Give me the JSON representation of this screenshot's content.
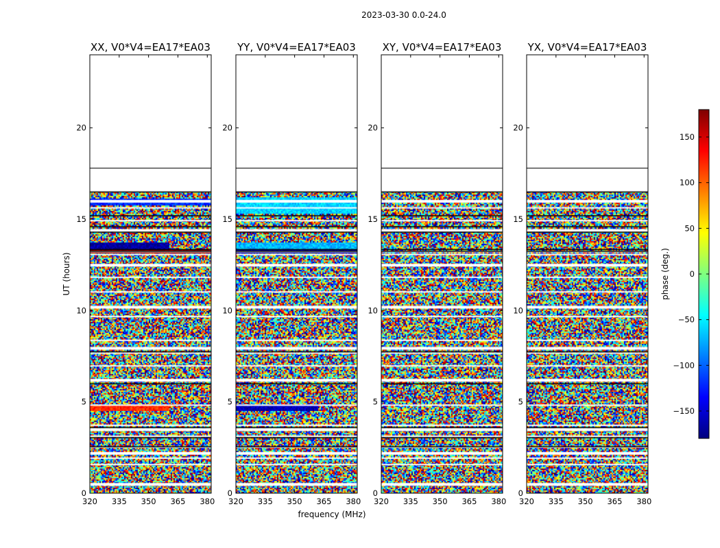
{
  "chart_data": {
    "type": "heatmap",
    "suptitle": "2023-03-30 0.0-24.0",
    "xlabel": "frequency (MHz)",
    "ylabel": "UT (hours)",
    "xlim": [
      320,
      382
    ],
    "ylim": [
      0,
      24
    ],
    "xticks": [
      320,
      335,
      350,
      365,
      380
    ],
    "yticks": [
      0,
      5,
      10,
      15,
      20
    ],
    "data_extent_hours": [
      0,
      16.5
    ],
    "reference_line_hours": 17.8,
    "colormap": "jet",
    "colorbar": {
      "label": "phase (deg.)",
      "range": [
        -180,
        180
      ],
      "ticks": [
        150,
        100,
        50,
        0,
        -50,
        -100,
        -150
      ],
      "tick_labels": [
        "150",
        "100",
        "50",
        "0",
        "−50",
        "−100",
        "−150"
      ]
    },
    "panels": [
      {
        "title": "XX, V0*V4=EA17*EA03",
        "bands": [
          {
            "t0": 13.3,
            "t1": 13.7,
            "phase": -170,
            "f1": 360
          },
          {
            "t0": 13.2,
            "t1": 13.32,
            "phase": 175,
            "f1": 382
          },
          {
            "t0": 4.5,
            "t1": 4.8,
            "phase": 120,
            "f1": 360
          },
          {
            "t0": 15.8,
            "t1": 16.1,
            "phase": -120,
            "f1": 382
          }
        ]
      },
      {
        "title": "YY, V0*V4=EA17*EA03",
        "bands": [
          {
            "t0": 13.4,
            "t1": 13.7,
            "phase": -70,
            "f1": 382
          },
          {
            "t0": 13.2,
            "t1": 13.35,
            "phase": -170,
            "f1": 382
          },
          {
            "t0": 4.5,
            "t1": 4.8,
            "phase": -160,
            "f1": 362
          },
          {
            "t0": 15.3,
            "t1": 16.2,
            "phase": -60,
            "f1": 382
          }
        ]
      },
      {
        "title": "XY, V0*V4=EA17*EA03",
        "bands": []
      },
      {
        "title": "YX, V0*V4=EA17*EA03",
        "bands": []
      }
    ],
    "flagged_rows_hours": [
      0.5,
      1.55,
      1.9,
      2.2,
      2.5,
      3.1,
      3.5,
      3.7,
      4.8,
      6.2,
      6.95,
      7.65,
      7.95,
      8.35,
      9.65,
      10.2,
      11.0,
      11.8,
      12.5,
      13.05,
      13.2,
      14.4,
      14.9,
      15.6,
      16.0
    ],
    "black_lines_hours": [
      2.55,
      3.05,
      3.6,
      6.0,
      7.75,
      13.25,
      13.35,
      14.3,
      14.6,
      15.2,
      16.5
    ]
  }
}
